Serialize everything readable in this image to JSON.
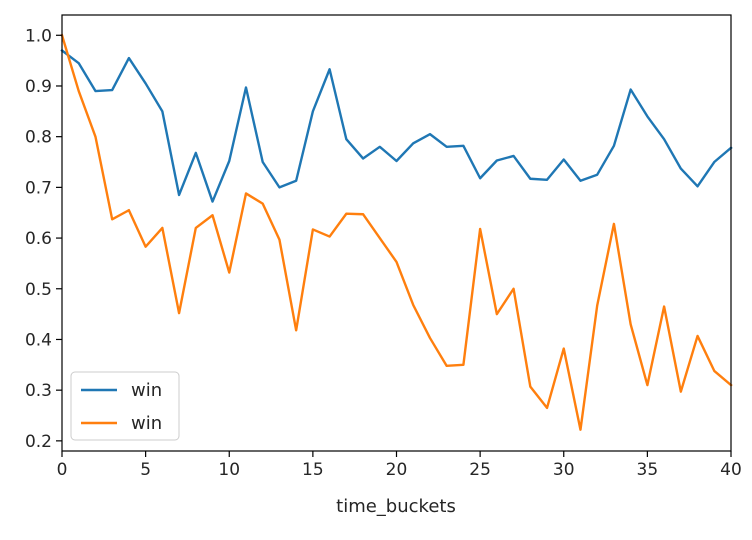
{
  "chart_data": {
    "type": "line",
    "xlabel": "time_buckets",
    "ylabel": "",
    "xlim": [
      0,
      40
    ],
    "ylim": [
      0.18,
      1.04
    ],
    "xticks": [
      "0",
      "5",
      "10",
      "15",
      "20",
      "25",
      "30",
      "35",
      "40"
    ],
    "yticks": [
      "0.2",
      "0.3",
      "0.4",
      "0.5",
      "0.6",
      "0.7",
      "0.8",
      "0.9",
      "1.0"
    ],
    "grid": false,
    "legend_position": "lower-left",
    "x": [
      0,
      1,
      2,
      3,
      4,
      5,
      6,
      7,
      8,
      9,
      10,
      11,
      12,
      13,
      14,
      15,
      16,
      17,
      18,
      19,
      20,
      21,
      22,
      23,
      24,
      25,
      26,
      27,
      28,
      29,
      30,
      31,
      32,
      33,
      34,
      35,
      36,
      37,
      38,
      39,
      40
    ],
    "series": [
      {
        "name": "win",
        "color": "#1f77b4",
        "values": [
          0.97,
          0.945,
          0.89,
          0.892,
          0.955,
          0.905,
          0.85,
          0.685,
          0.768,
          0.672,
          0.752,
          0.897,
          0.75,
          0.7,
          0.713,
          0.85,
          0.933,
          0.795,
          0.757,
          0.78,
          0.752,
          0.787,
          0.805,
          0.78,
          0.782,
          0.718,
          0.753,
          0.762,
          0.717,
          0.715,
          0.755,
          0.713,
          0.725,
          0.782,
          0.893,
          0.84,
          0.795,
          0.737,
          0.702,
          0.75,
          0.778
        ]
      },
      {
        "name": "win",
        "color": "#ff7f0e",
        "values": [
          1.0,
          0.89,
          0.8,
          0.637,
          0.655,
          0.583,
          0.62,
          0.452,
          0.62,
          0.645,
          0.532,
          0.688,
          0.668,
          0.597,
          0.418,
          0.617,
          0.603,
          0.648,
          0.647,
          0.6,
          0.553,
          0.468,
          0.403,
          0.348,
          0.35,
          0.618,
          0.45,
          0.5,
          0.307,
          0.265,
          0.382,
          0.222,
          0.467,
          0.628,
          0.43,
          0.31,
          0.465,
          0.297,
          0.407,
          0.338,
          0.31
        ]
      }
    ]
  }
}
